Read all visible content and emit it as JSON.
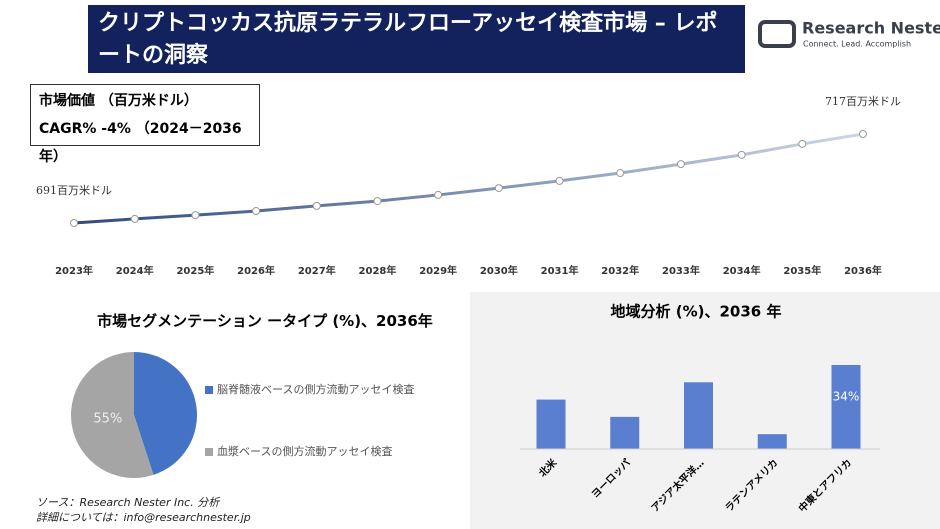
{
  "header": {
    "title": "クリプトコッカス抗原ラテラルフローアッセイ検査市場 – レポートの洞察",
    "logo_name": "Research Nester",
    "logo_tagline": "Connect. Lead. Accomplish"
  },
  "market_box": {
    "line1": "市場価値 （百万米ドル）",
    "line2": "CAGR% -4% （2024－2036年）"
  },
  "chart_data": [
    {
      "type": "line",
      "categories": [
        "2023年",
        "2024年",
        "2025年",
        "2026年",
        "2027年",
        "2028年",
        "2029年",
        "2030年",
        "2031年",
        "2032年",
        "2033年",
        "2034年",
        "2035年",
        "2036年"
      ],
      "values": [
        691,
        692.2,
        693.3,
        694.5,
        696.0,
        697.4,
        699.2,
        701.2,
        703.3,
        705.6,
        708.2,
        710.9,
        714.1,
        717
      ],
      "value_labels": [
        "691百万米ドル",
        null,
        null,
        null,
        null,
        null,
        null,
        null,
        null,
        null,
        null,
        null,
        null,
        "717百万米ドル"
      ],
      "color_start": "#2f4b7c",
      "color_end": "#cdd6e6"
    },
    {
      "type": "pie",
      "title": "市場セグメンテーション ータイプ (%)、2036年",
      "categories": [
        "脳脊髄液ベースの側方流動アッセイ検査",
        "血漿ベースの側方流動アッセイ検査"
      ],
      "values": [
        45,
        55
      ],
      "value_labels": [
        null,
        "55%"
      ],
      "colors": [
        "#4472c4",
        "#a5a5a5"
      ]
    },
    {
      "type": "bar",
      "title": "地域分析 (%)、2036 年",
      "categories": [
        "北米",
        "ヨーロッパ",
        "アジア太平洋…",
        "ラテンアメリカ",
        "中東とアフリカ"
      ],
      "values": [
        20,
        13,
        27,
        6,
        34
      ],
      "value_labels": [
        null,
        null,
        null,
        null,
        "34%"
      ],
      "color": "#5b7fd0"
    }
  ],
  "footer": {
    "source": "ソース：Research Nester Inc. 分析",
    "contact": "詳細については：info@researchnester.jp"
  }
}
